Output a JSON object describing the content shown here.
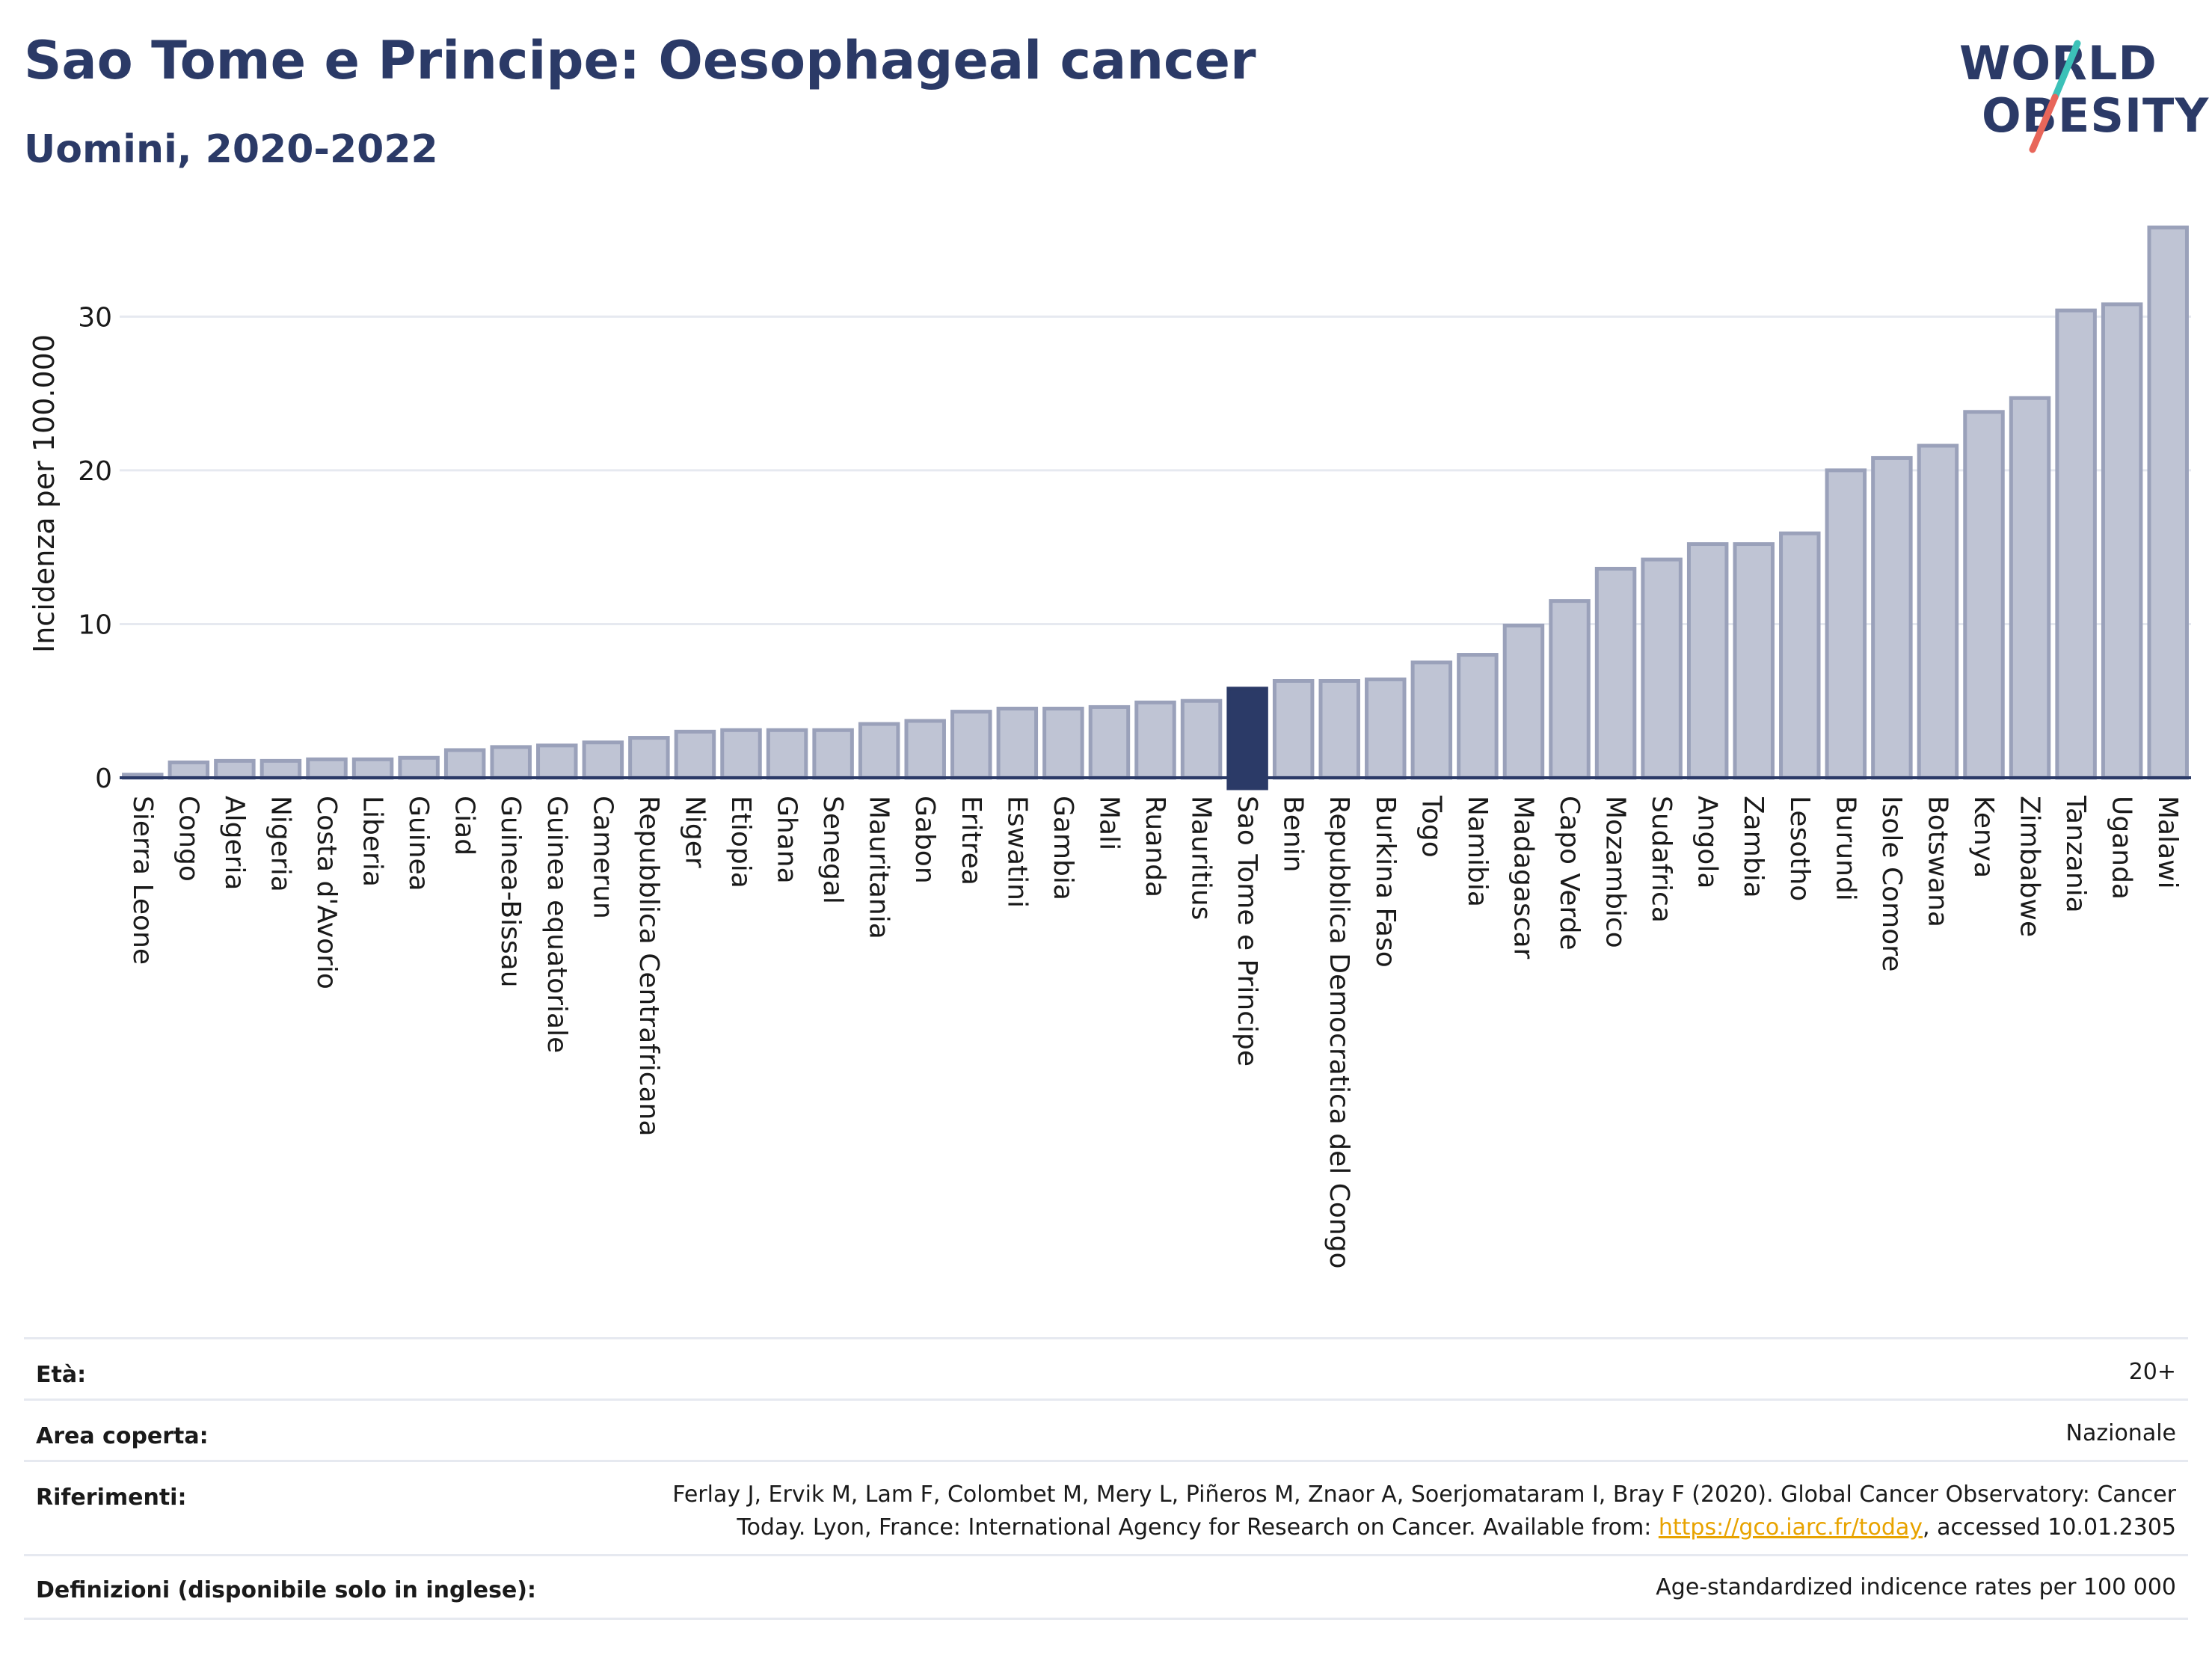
{
  "header": {
    "title": "Sao Tome e Principe: Oesophageal cancer",
    "subtitle": "Uomini, 2020-2022"
  },
  "logo": {
    "line1": "WORLD",
    "line2": "OBESITY",
    "slash_colors": [
      "#3cc1b8",
      "#e8665a"
    ]
  },
  "chart_data": {
    "type": "bar",
    "ylabel": "Incidenza per 100.000",
    "ylim": [
      0,
      36
    ],
    "yticks": [
      0,
      10,
      20,
      30
    ],
    "grid": true,
    "highlight": "Sao Tome e Principe",
    "colors": {
      "bar": "#bfc4d4",
      "bar_border": "#9aa1ba",
      "highlight": "#2b3a67"
    },
    "categories": [
      "Sierra Leone",
      "Congo",
      "Algeria",
      "Nigeria",
      "Costa d'Avorio",
      "Liberia",
      "Guinea",
      "Ciad",
      "Guinea-Bissau",
      "Guinea equatoriale",
      "Camerun",
      "Repubblica Centrafricana",
      "Niger",
      "Etiopia",
      "Ghana",
      "Senegal",
      "Mauritania",
      "Gabon",
      "Eritrea",
      "Eswatini",
      "Gambia",
      "Mali",
      "Ruanda",
      "Mauritius",
      "Sao Tome e Principe",
      "Benin",
      "Repubblica Democratica del Congo",
      "Burkina Faso",
      "Togo",
      "Namibia",
      "Madagascar",
      "Capo Verde",
      "Mozambico",
      "Sudafrica",
      "Angola",
      "Zambia",
      "Lesotho",
      "Burundi",
      "Isole Comore",
      "Botswana",
      "Kenya",
      "Zimbabwe",
      "Tanzania",
      "Uganda",
      "Malawi"
    ],
    "values": [
      0.2,
      1.0,
      1.1,
      1.1,
      1.2,
      1.2,
      1.3,
      1.8,
      2.0,
      2.1,
      2.3,
      2.6,
      3.0,
      3.1,
      3.1,
      3.1,
      3.5,
      3.7,
      4.3,
      4.5,
      4.5,
      4.6,
      4.9,
      5.0,
      5.8,
      6.3,
      6.3,
      6.4,
      7.5,
      8.0,
      9.9,
      11.5,
      13.6,
      14.2,
      15.2,
      15.2,
      15.9,
      20.0,
      20.8,
      21.6,
      23.8,
      24.7,
      30.4,
      30.8,
      35.8
    ]
  },
  "meta": {
    "rows": [
      {
        "label": "Età:",
        "value": "20+"
      },
      {
        "label": "Area coperta:",
        "value": "Nazionale"
      },
      {
        "label": "Riferimenti:",
        "value_line1": "Ferlay J, Ervik M, Lam F, Colombet M, Mery L, Piñeros M, Znaor A, Soerjomataram I, Bray F (2020). Global Cancer Observatory: Cancer",
        "value_line2_pre": "Today. Lyon, France: International Agency for Research on Cancer. Available from: ",
        "value_link": "https://gco.iarc.fr/today",
        "value_line2_post": ", accessed 10.01.2305"
      },
      {
        "label": "Definizioni (disponibile solo in inglese):",
        "value": "Age-standardized indicence rates per 100 000"
      }
    ]
  }
}
